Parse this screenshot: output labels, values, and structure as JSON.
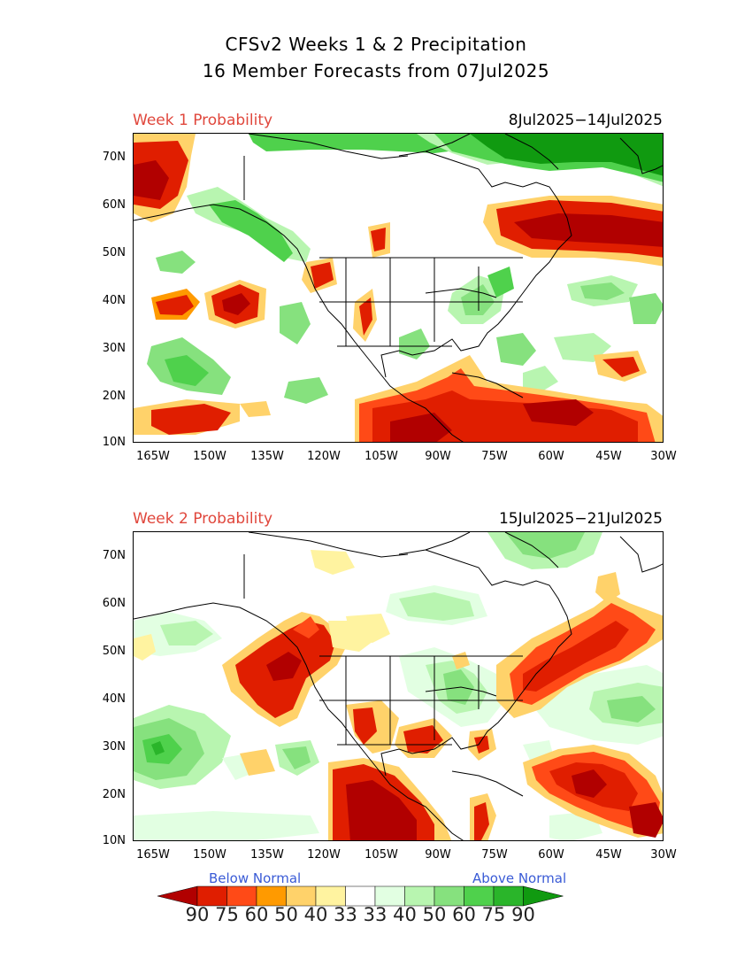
{
  "title_line1": "CFSv2 Weeks 1 & 2 Precipitation",
  "title_line2": "16 Member Forecasts from 07Jul2025",
  "panels": [
    {
      "label": "Week 1 Probability",
      "dates": "8Jul2025−14Jul2025"
    },
    {
      "label": "Week 2 Probability",
      "dates": "15Jul2025−21Jul2025"
    }
  ],
  "lat_ticks": [
    "70N",
    "60N",
    "50N",
    "40N",
    "30N",
    "20N",
    "10N"
  ],
  "lon_ticks": [
    "165W",
    "150W",
    "135W",
    "120W",
    "105W",
    "90W",
    "75W",
    "60W",
    "45W",
    "30W"
  ],
  "legend": {
    "below_label": "Below Normal",
    "above_label": "Above Normal",
    "values": [
      "90",
      "75",
      "60",
      "50",
      "40",
      "33",
      "33",
      "40",
      "50",
      "60",
      "75",
      "90"
    ],
    "colors": [
      "#b10000",
      "#e01e00",
      "#ff4a17",
      "#ff9a00",
      "#ffd26a",
      "#fff3a0",
      "#ffffff",
      "#e2ffe2",
      "#b8f5b0",
      "#86e17e",
      "#4fd14c",
      "#2ab52a",
      "#109a10"
    ]
  }
}
